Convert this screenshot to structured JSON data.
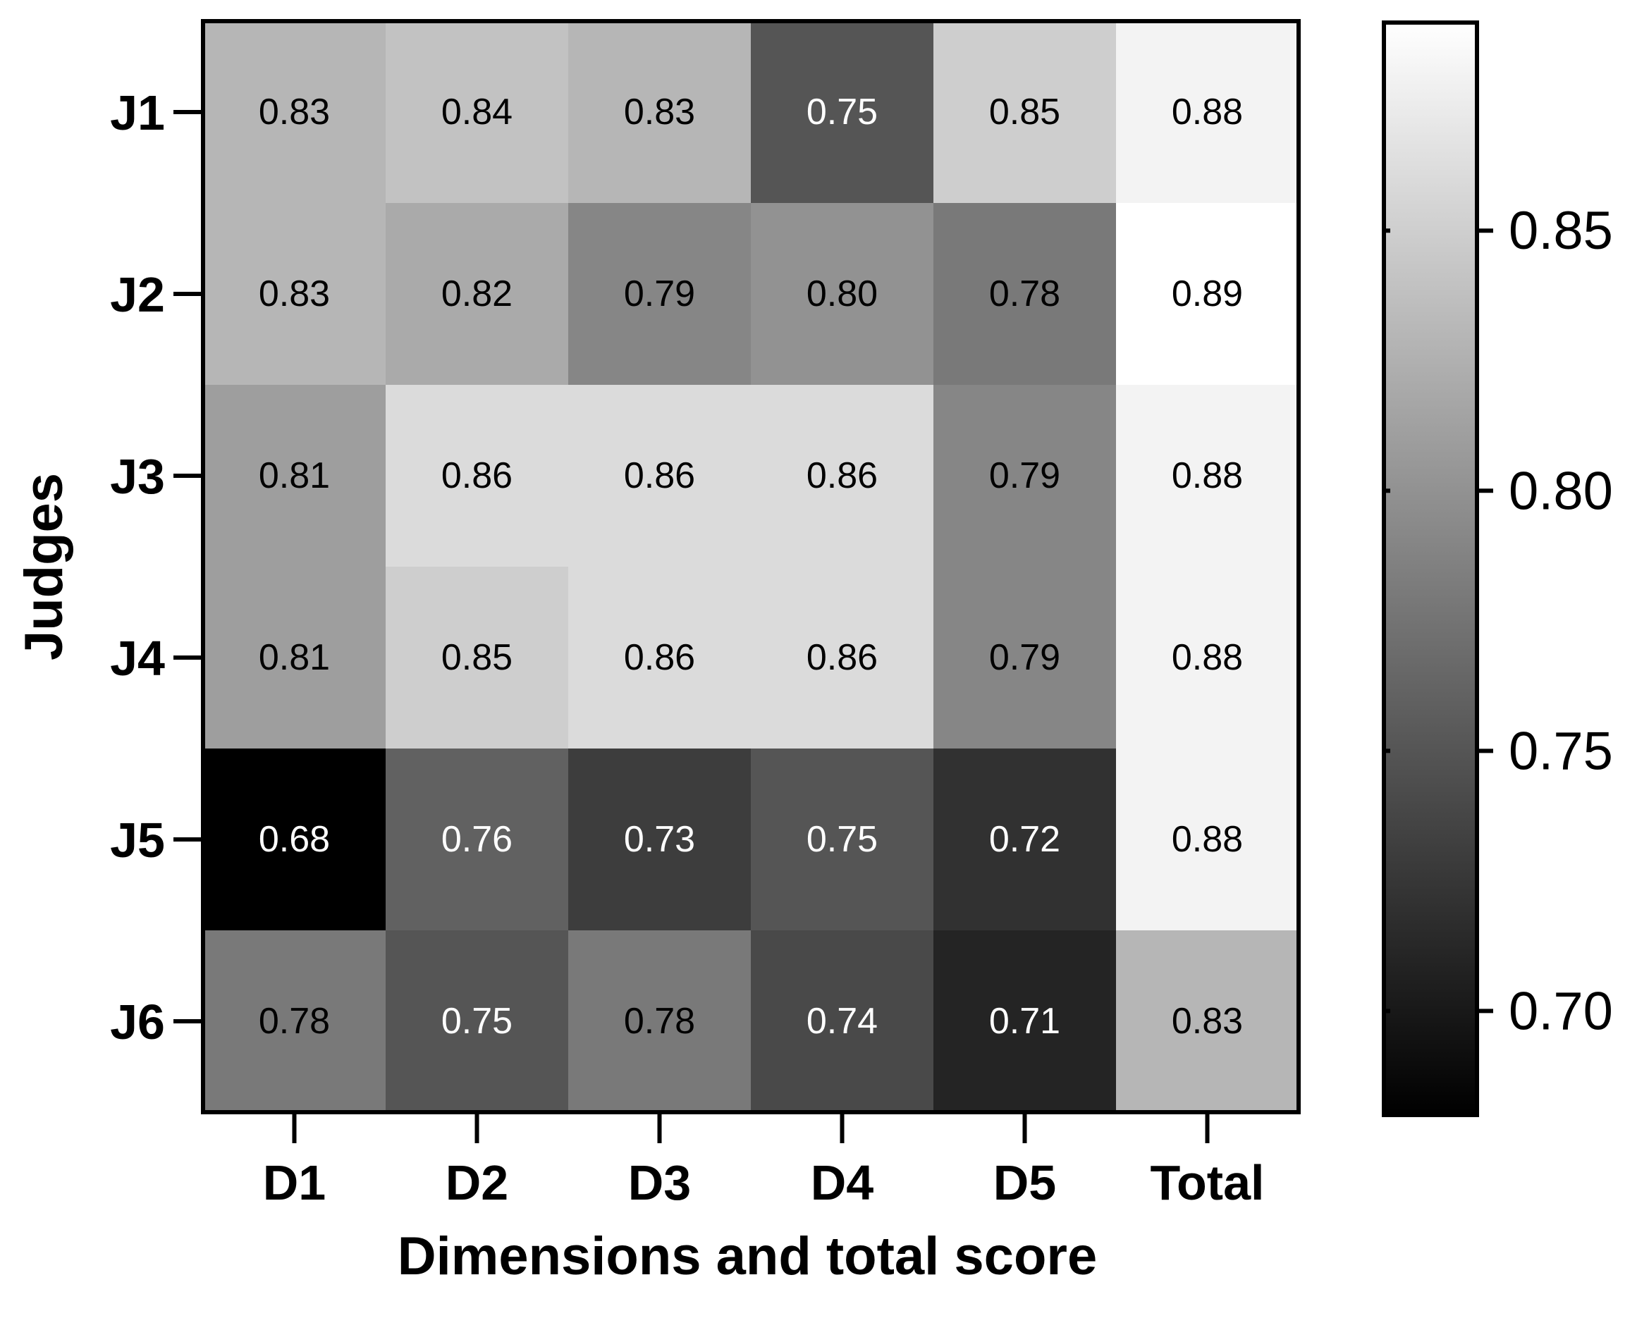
{
  "chart_data": {
    "type": "heatmap",
    "title": "",
    "xlabel": "Dimensions and total score",
    "ylabel": "Judges",
    "x_categories": [
      "D1",
      "D2",
      "D3",
      "D4",
      "D5",
      "Total"
    ],
    "y_categories": [
      "J1",
      "J2",
      "J3",
      "J4",
      "J5",
      "J6"
    ],
    "values": [
      [
        0.83,
        0.84,
        0.83,
        0.75,
        0.85,
        0.88
      ],
      [
        0.83,
        0.82,
        0.79,
        0.8,
        0.78,
        0.89
      ],
      [
        0.81,
        0.86,
        0.86,
        0.86,
        0.79,
        0.88
      ],
      [
        0.81,
        0.85,
        0.86,
        0.86,
        0.79,
        0.88
      ],
      [
        0.68,
        0.76,
        0.73,
        0.75,
        0.72,
        0.88
      ],
      [
        0.78,
        0.75,
        0.78,
        0.74,
        0.71,
        0.83
      ]
    ],
    "value_labels": [
      [
        "0.83",
        "0.84",
        "0.83",
        "0.75",
        "0.85",
        "0.88"
      ],
      [
        "0.83",
        "0.82",
        "0.79",
        "0.80",
        "0.78",
        "0.89"
      ],
      [
        "0.81",
        "0.86",
        "0.86",
        "0.86",
        "0.79",
        "0.88"
      ],
      [
        "0.81",
        "0.85",
        "0.86",
        "0.86",
        "0.79",
        "0.88"
      ],
      [
        "0.68",
        "0.76",
        "0.73",
        "0.75",
        "0.72",
        "0.88"
      ],
      [
        "0.78",
        "0.75",
        "0.78",
        "0.74",
        "0.71",
        "0.83"
      ]
    ],
    "colorbar": {
      "range": [
        0.68,
        0.89
      ],
      "ticks": [
        0.7,
        0.75,
        0.8,
        0.85
      ],
      "tick_labels": [
        "0.70",
        "0.75",
        "0.80",
        "0.85"
      ],
      "low_color": "#000000",
      "high_color": "#ffffff"
    },
    "grid": false
  }
}
